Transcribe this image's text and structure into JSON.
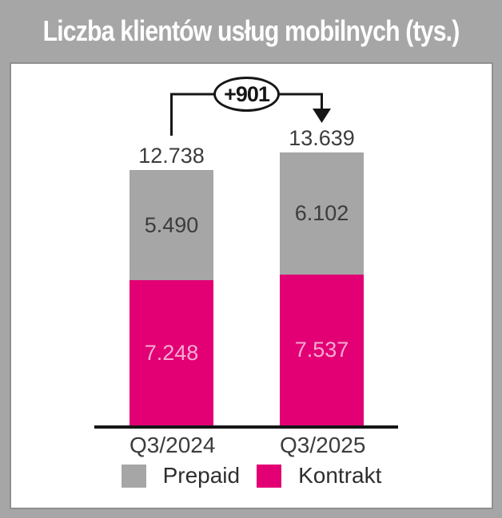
{
  "header": {
    "title": "Liczba klientów usług mobilnych (tys.)"
  },
  "chart": {
    "delta_label": "+901",
    "bars": [
      {
        "category": "Q3/2024",
        "total_label": "12.738",
        "prepaid_label": "5.490",
        "kontrakt_label": "7.248"
      },
      {
        "category": "Q3/2025",
        "total_label": "13.639",
        "prepaid_label": "6.102",
        "kontrakt_label": "7.537"
      }
    ]
  },
  "legend": {
    "prepaid": "Prepaid",
    "kontrakt": "Kontrakt"
  },
  "colors": {
    "background_gray": "#a6a6a6",
    "prepaid_gray": "#a6a6a6",
    "kontrakt_magenta": "#e20074",
    "kontrakt_value_text": "#f7abd3",
    "dark_text": "#3c3c3c",
    "title_text": "#ffffff",
    "axis_black": "#161616"
  },
  "chart_data": {
    "type": "bar",
    "stacked": true,
    "title": "Liczba klientów usług mobilnych (tys.)",
    "categories": [
      "Q3/2024",
      "Q3/2025"
    ],
    "series": [
      {
        "name": "Kontrakt",
        "color": "#e20074",
        "values": [
          7248,
          7537
        ]
      },
      {
        "name": "Prepaid",
        "color": "#a6a6a6",
        "values": [
          5490,
          6102
        ]
      }
    ],
    "totals": [
      12738,
      13639
    ],
    "delta_annotation": "+901",
    "unit": "tys.",
    "legend_position": "bottom",
    "grid": false,
    "value_labels_shown": true
  }
}
